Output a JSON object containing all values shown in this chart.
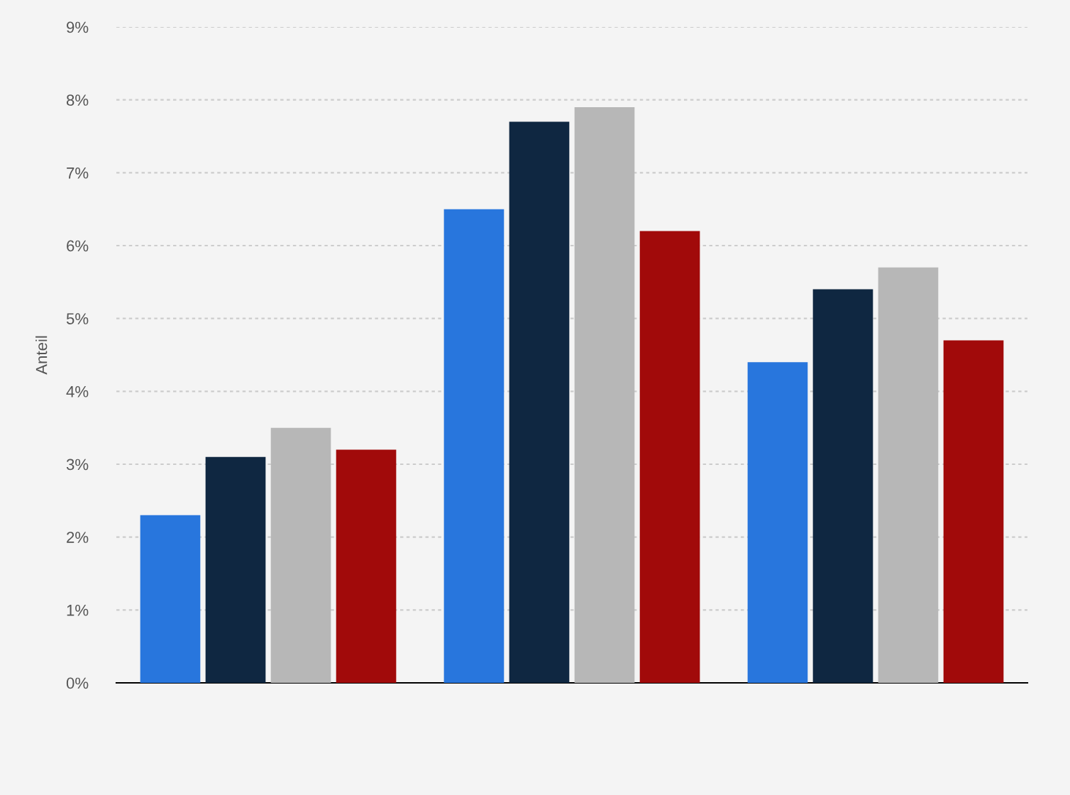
{
  "chart_data": {
    "type": "bar",
    "ylabel": "Anteil",
    "categories": [
      null,
      null,
      null
    ],
    "series": [
      {
        "color": "#2876dd",
        "values": [
          2.3,
          6.5,
          4.4
        ]
      },
      {
        "color": "#0f2741",
        "values": [
          3.1,
          7.7,
          5.4
        ]
      },
      {
        "color": "#b7b7b7",
        "values": [
          3.5,
          7.9,
          5.7
        ]
      },
      {
        "color": "#a10a0a",
        "values": [
          3.2,
          6.2,
          4.7
        ]
      }
    ],
    "ylim": [
      0,
      9
    ],
    "yticks": [
      {
        "value": 0,
        "label": "0%"
      },
      {
        "value": 1,
        "label": "1%"
      },
      {
        "value": 2,
        "label": "2%"
      },
      {
        "value": 3,
        "label": "3%"
      },
      {
        "value": 4,
        "label": "4%"
      },
      {
        "value": 5,
        "label": "5%"
      },
      {
        "value": 6,
        "label": "6%"
      },
      {
        "value": 7,
        "label": "7%"
      },
      {
        "value": 8,
        "label": "8%"
      },
      {
        "value": 9,
        "label": "9%"
      }
    ],
    "grid": "y"
  }
}
